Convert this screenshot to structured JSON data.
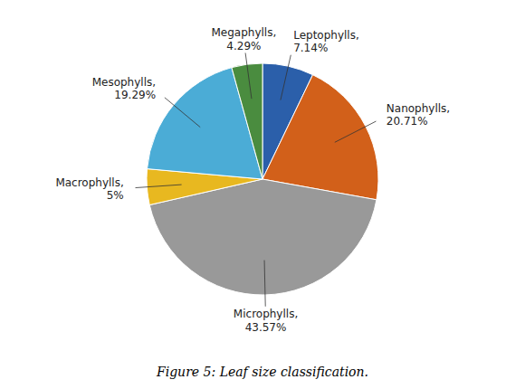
{
  "chart_data": {
    "type": "pie",
    "title": "Figure 5: Leaf size classification.",
    "categories": [
      "Leptophylls,",
      "Nanophylls,",
      "Microphylls,",
      "Macrophylls,",
      "Mesophylls,",
      "Megaphylls,"
    ],
    "values": [
      7.14,
      20.71,
      43.57,
      5.0,
      19.29,
      4.29
    ],
    "value_labels": [
      "7.14%",
      "20.71%",
      "43.57%",
      "5%",
      "19.29%",
      "4.29%"
    ],
    "colors": [
      "#2b5faa",
      "#d2601a",
      "#999999",
      "#e8b820",
      "#4bacd6",
      "#4a8c3f"
    ],
    "data_labels": true
  }
}
